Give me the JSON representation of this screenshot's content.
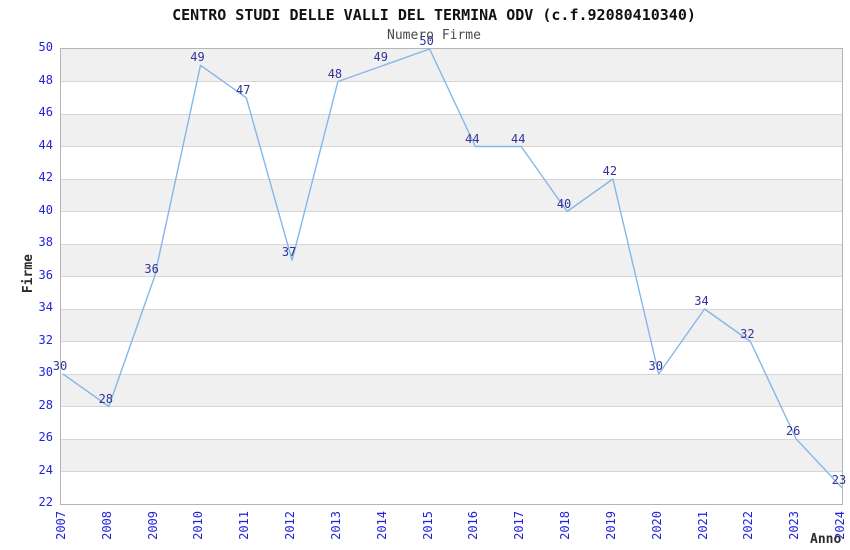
{
  "chart_data": {
    "type": "line",
    "title": "CENTRO STUDI DELLE VALLI DEL TERMINA ODV (c.f.92080410340)",
    "subtitle": "Numero Firme",
    "xlabel": "Anno",
    "ylabel": "Firme",
    "x": [
      "2007",
      "2008",
      "2009",
      "2010",
      "2011",
      "2012",
      "2013",
      "2014",
      "2015",
      "2016",
      "2017",
      "2018",
      "2019",
      "2020",
      "2021",
      "2022",
      "2023",
      "2024"
    ],
    "series": [
      {
        "name": "Numero Firme",
        "values": [
          30,
          28,
          36,
          49,
          47,
          37,
          48,
          49,
          50,
          44,
          44,
          40,
          42,
          30,
          34,
          32,
          26,
          23
        ]
      }
    ],
    "ylim": [
      22,
      50
    ],
    "ytick_step": 2,
    "grid": true,
    "legend_position": "none",
    "data_labels_shown": true,
    "band_colors": [
      "#ffffff",
      "#f0f0f0"
    ],
    "colors": {
      "line": "#85b7e8",
      "tick_label": "#2222dd",
      "data_label": "#333399",
      "grid": "#d6d6d6",
      "border": "#b5b5b5",
      "title": "#111111",
      "subtitle": "#4a4a4a",
      "axis_title": "#2b2b2b"
    }
  }
}
